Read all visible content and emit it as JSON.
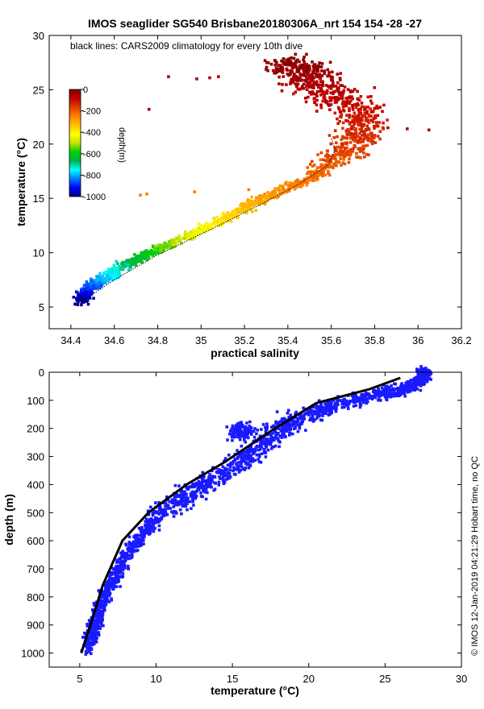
{
  "chart_data": [
    {
      "type": "scatter",
      "title": "IMOS seaglider SG540 Brisbane20180306A_nrt 154  154  -28  -27",
      "xlabel": "practical salinity",
      "ylabel": "temperature (°C)",
      "xlim": [
        34.3,
        36.2
      ],
      "ylim": [
        3,
        30
      ],
      "xticks": [
        34.4,
        34.6,
        34.8,
        35,
        35.2,
        35.4,
        35.6,
        35.8,
        36,
        36.2
      ],
      "xtick_labels": [
        "34.4",
        "34.6",
        "34.8",
        "35",
        "35.2",
        "35.4",
        "35.6",
        "35.8",
        "36",
        "36.2"
      ],
      "yticks": [
        5,
        10,
        15,
        20,
        25,
        30
      ],
      "ytick_labels": [
        "5",
        "10",
        "15",
        "20",
        "25",
        "30"
      ],
      "annotation": "black lines: CARS2009 climatology for every 10th dive",
      "colorbar": {
        "label": "depth(m)",
        "ticks": [
          "0",
          "-200",
          "-400",
          "-600",
          "-800",
          "-1000"
        ],
        "range": [
          -1000,
          0
        ],
        "colors": [
          "#00007f",
          "#0000ff",
          "#007fff",
          "#00ffff",
          "#00b050",
          "#00d000",
          "#c8e000",
          "#ffff00",
          "#ffc000",
          "#ff8000",
          "#e04000",
          "#c00000",
          "#800000"
        ]
      },
      "glider_profile": [
        {
          "S": 34.45,
          "T": 5.5,
          "depth": -1000
        },
        {
          "S": 34.46,
          "T": 6.0,
          "depth": -950
        },
        {
          "S": 34.5,
          "T": 7.0,
          "depth": -850
        },
        {
          "S": 34.58,
          "T": 8.0,
          "depth": -760
        },
        {
          "S": 34.68,
          "T": 9.2,
          "depth": -650
        },
        {
          "S": 34.8,
          "T": 10.3,
          "depth": -560
        },
        {
          "S": 34.95,
          "T": 11.6,
          "depth": -460
        },
        {
          "S": 35.1,
          "T": 13.0,
          "depth": -380
        },
        {
          "S": 35.22,
          "T": 14.3,
          "depth": -320
        },
        {
          "S": 35.35,
          "T": 15.6,
          "depth": -270
        },
        {
          "S": 35.52,
          "T": 17.0,
          "depth": -230
        },
        {
          "S": 35.62,
          "T": 18.5,
          "depth": -190
        },
        {
          "S": 35.7,
          "T": 20.0,
          "depth": -160
        },
        {
          "S": 35.75,
          "T": 21.5,
          "depth": -130
        },
        {
          "S": 35.72,
          "T": 23.0,
          "depth": -100
        },
        {
          "S": 35.6,
          "T": 24.5,
          "depth": -80
        },
        {
          "S": 35.5,
          "T": 26.0,
          "depth": -50
        },
        {
          "S": 35.45,
          "T": 27.0,
          "depth": -25
        },
        {
          "S": 35.4,
          "T": 27.4,
          "depth": -5
        }
      ],
      "climatology": [
        {
          "S": 34.45,
          "T": 5.5
        },
        {
          "S": 34.6,
          "T": 7.5
        },
        {
          "S": 34.8,
          "T": 9.8
        },
        {
          "S": 35.05,
          "T": 12.2
        },
        {
          "S": 35.28,
          "T": 14.5
        },
        {
          "S": 35.45,
          "T": 16.3
        },
        {
          "S": 35.58,
          "T": 18.0
        },
        {
          "S": 35.62,
          "T": 19.5
        },
        {
          "S": 35.6,
          "T": 20.5
        }
      ]
    },
    {
      "type": "scatter",
      "xlabel": "temperature (°C)",
      "ylabel": "depth (m)",
      "xlim": [
        3,
        30
      ],
      "ylim": [
        1050,
        0
      ],
      "xticks": [
        5,
        10,
        15,
        20,
        25,
        30
      ],
      "xtick_labels": [
        "5",
        "10",
        "15",
        "20",
        "25",
        "30"
      ],
      "yticks": [
        0,
        100,
        200,
        300,
        400,
        500,
        600,
        700,
        800,
        900,
        1000
      ],
      "ytick_labels": [
        "0",
        "100",
        "200",
        "300",
        "400",
        "500",
        "600",
        "700",
        "800",
        "900",
        "1000"
      ],
      "glider_color": "#1a1aff",
      "climatology_color": "#000000",
      "glider_profile": [
        {
          "T": 27.6,
          "depth": 0
        },
        {
          "T": 27.4,
          "depth": 30
        },
        {
          "T": 25.5,
          "depth": 70
        },
        {
          "T": 22.0,
          "depth": 110
        },
        {
          "T": 19.5,
          "depth": 160
        },
        {
          "T": 17.5,
          "depth": 230
        },
        {
          "T": 15.6,
          "depth": 320
        },
        {
          "T": 12.5,
          "depth": 420
        },
        {
          "T": 10.0,
          "depth": 520
        },
        {
          "T": 8.2,
          "depth": 640
        },
        {
          "T": 6.8,
          "depth": 780
        },
        {
          "T": 6.0,
          "depth": 900
        },
        {
          "T": 5.6,
          "depth": 990
        }
      ],
      "climatology": [
        {
          "T": 26.0,
          "depth": 20
        },
        {
          "T": 24.0,
          "depth": 60
        },
        {
          "T": 20.5,
          "depth": 110
        },
        {
          "T": 17.5,
          "depth": 210
        },
        {
          "T": 14.5,
          "depth": 320
        },
        {
          "T": 12.0,
          "depth": 400
        },
        {
          "T": 9.5,
          "depth": 500
        },
        {
          "T": 7.8,
          "depth": 600
        },
        {
          "T": 6.5,
          "depth": 760
        },
        {
          "T": 5.7,
          "depth": 900
        },
        {
          "T": 5.1,
          "depth": 1000
        }
      ]
    }
  ],
  "footer": {
    "stamp": "© IMOS 12-Jan-2019 04:21:29 Hobart time, no QC"
  }
}
